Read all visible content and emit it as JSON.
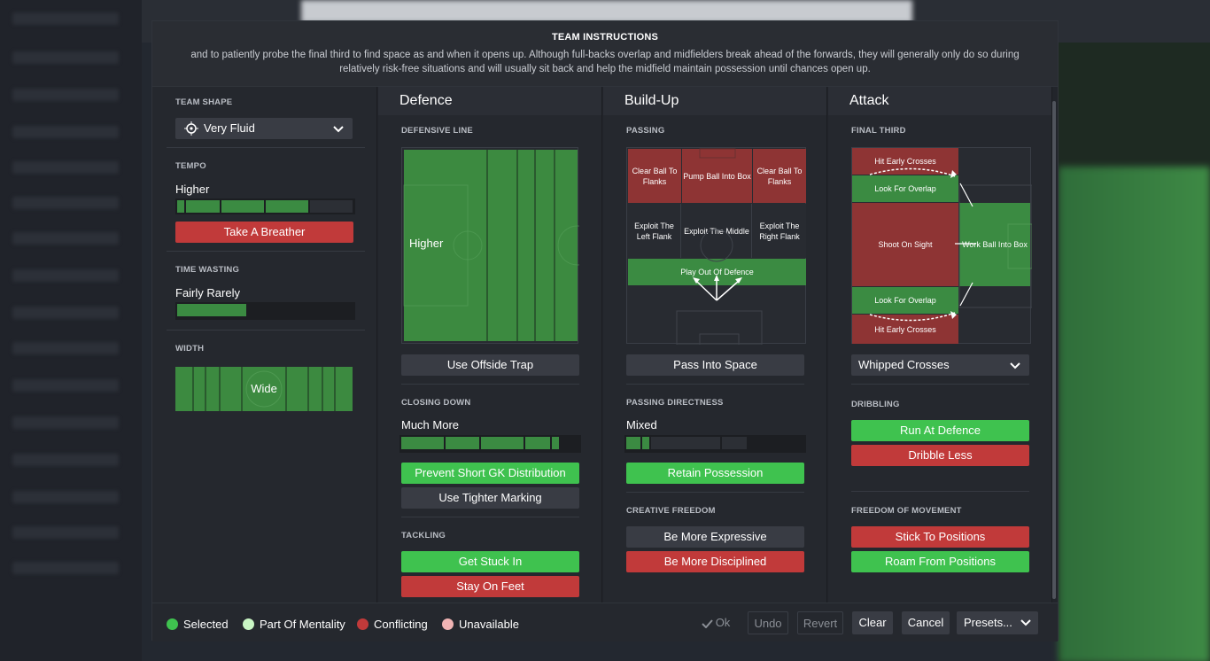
{
  "title": "TEAM INSTRUCTIONS",
  "description_line1": "and to patiently probe the final third to find space as and when it opens up. Although full-backs overlap and midfielders break ahead of the forwards, they will generally only do so during",
  "description_line2": "relatively risk-free situations and will usually sit back and help the midfield maintain possession until chances open up.",
  "left": {
    "team_shape_label": "TEAM SHAPE",
    "team_shape_value": "Very Fluid",
    "tempo_label": "TEMPO",
    "tempo_value": "Higher",
    "tempo_level": 0.75,
    "tempo_button": "Take A Breather",
    "time_wasting_label": "TIME WASTING",
    "time_wasting_value": "Fairly Rarely",
    "time_wasting_level": 0.4,
    "width_label": "WIDTH",
    "width_value": "Wide"
  },
  "defence": {
    "header": "Defence",
    "defensive_line_label": "DEFENSIVE LINE",
    "defensive_line_value": "Higher",
    "offside_button": "Use Offside Trap",
    "closing_down_label": "CLOSING DOWN",
    "closing_down_value": "Much More",
    "closing_down_level": 0.9,
    "gk_button": "Prevent Short GK Distribution",
    "marking_button": "Use Tighter Marking",
    "tackling_label": "TACKLING",
    "tackle_get_stuck": "Get Stuck In",
    "tackle_stay": "Stay On Feet"
  },
  "buildup": {
    "header": "Build-Up",
    "passing_label": "PASSING",
    "zone_clear_left": "Clear Ball To Flanks",
    "zone_pump": "Pump Ball Into Box",
    "zone_clear_right": "Clear Ball To Flanks",
    "zone_exploit_left": "Exploit The Left Flank",
    "zone_exploit_middle": "Exploit The Middle",
    "zone_exploit_right": "Exploit The Right Flank",
    "zone_play_out": "Play Out Of Defence",
    "pass_space_button": "Pass Into Space",
    "directness_label": "PASSING DIRECTNESS",
    "directness_value": "Mixed",
    "directness_level": 0.15,
    "retain_button": "Retain Possession",
    "creative_label": "CREATIVE FREEDOM",
    "expressive_button": "Be More Expressive",
    "disciplined_button": "Be More Disciplined"
  },
  "attack": {
    "header": "Attack",
    "final_third_label": "FINAL THIRD",
    "hit_early_top": "Hit Early Crosses",
    "overlap_top": "Look For Overlap",
    "shoot": "Shoot On Sight",
    "work_ball": "Work Ball Into Box",
    "overlap_bottom": "Look For Overlap",
    "hit_early_bottom": "Hit Early Crosses",
    "crosses_select": "Whipped Crosses",
    "dribbling_label": "DRIBBLING",
    "run_button": "Run At Defence",
    "dribble_less": "Dribble Less",
    "movement_label": "FREEDOM OF MOVEMENT",
    "stick_button": "Stick To Positions",
    "roam_button": "Roam From Positions"
  },
  "footer": {
    "legend_selected": "Selected",
    "legend_mentality": "Part Of Mentality",
    "legend_conflicting": "Conflicting",
    "legend_unavailable": "Unavailable",
    "ok": "Ok",
    "undo": "Undo",
    "revert": "Revert",
    "clear": "Clear",
    "cancel": "Cancel",
    "presets": "Presets..."
  },
  "colors": {
    "selected": "#3fc24f",
    "mentality": "#c9f5c4",
    "conflicting": "#c13a3a",
    "unavailable": "#f0b4b4"
  }
}
